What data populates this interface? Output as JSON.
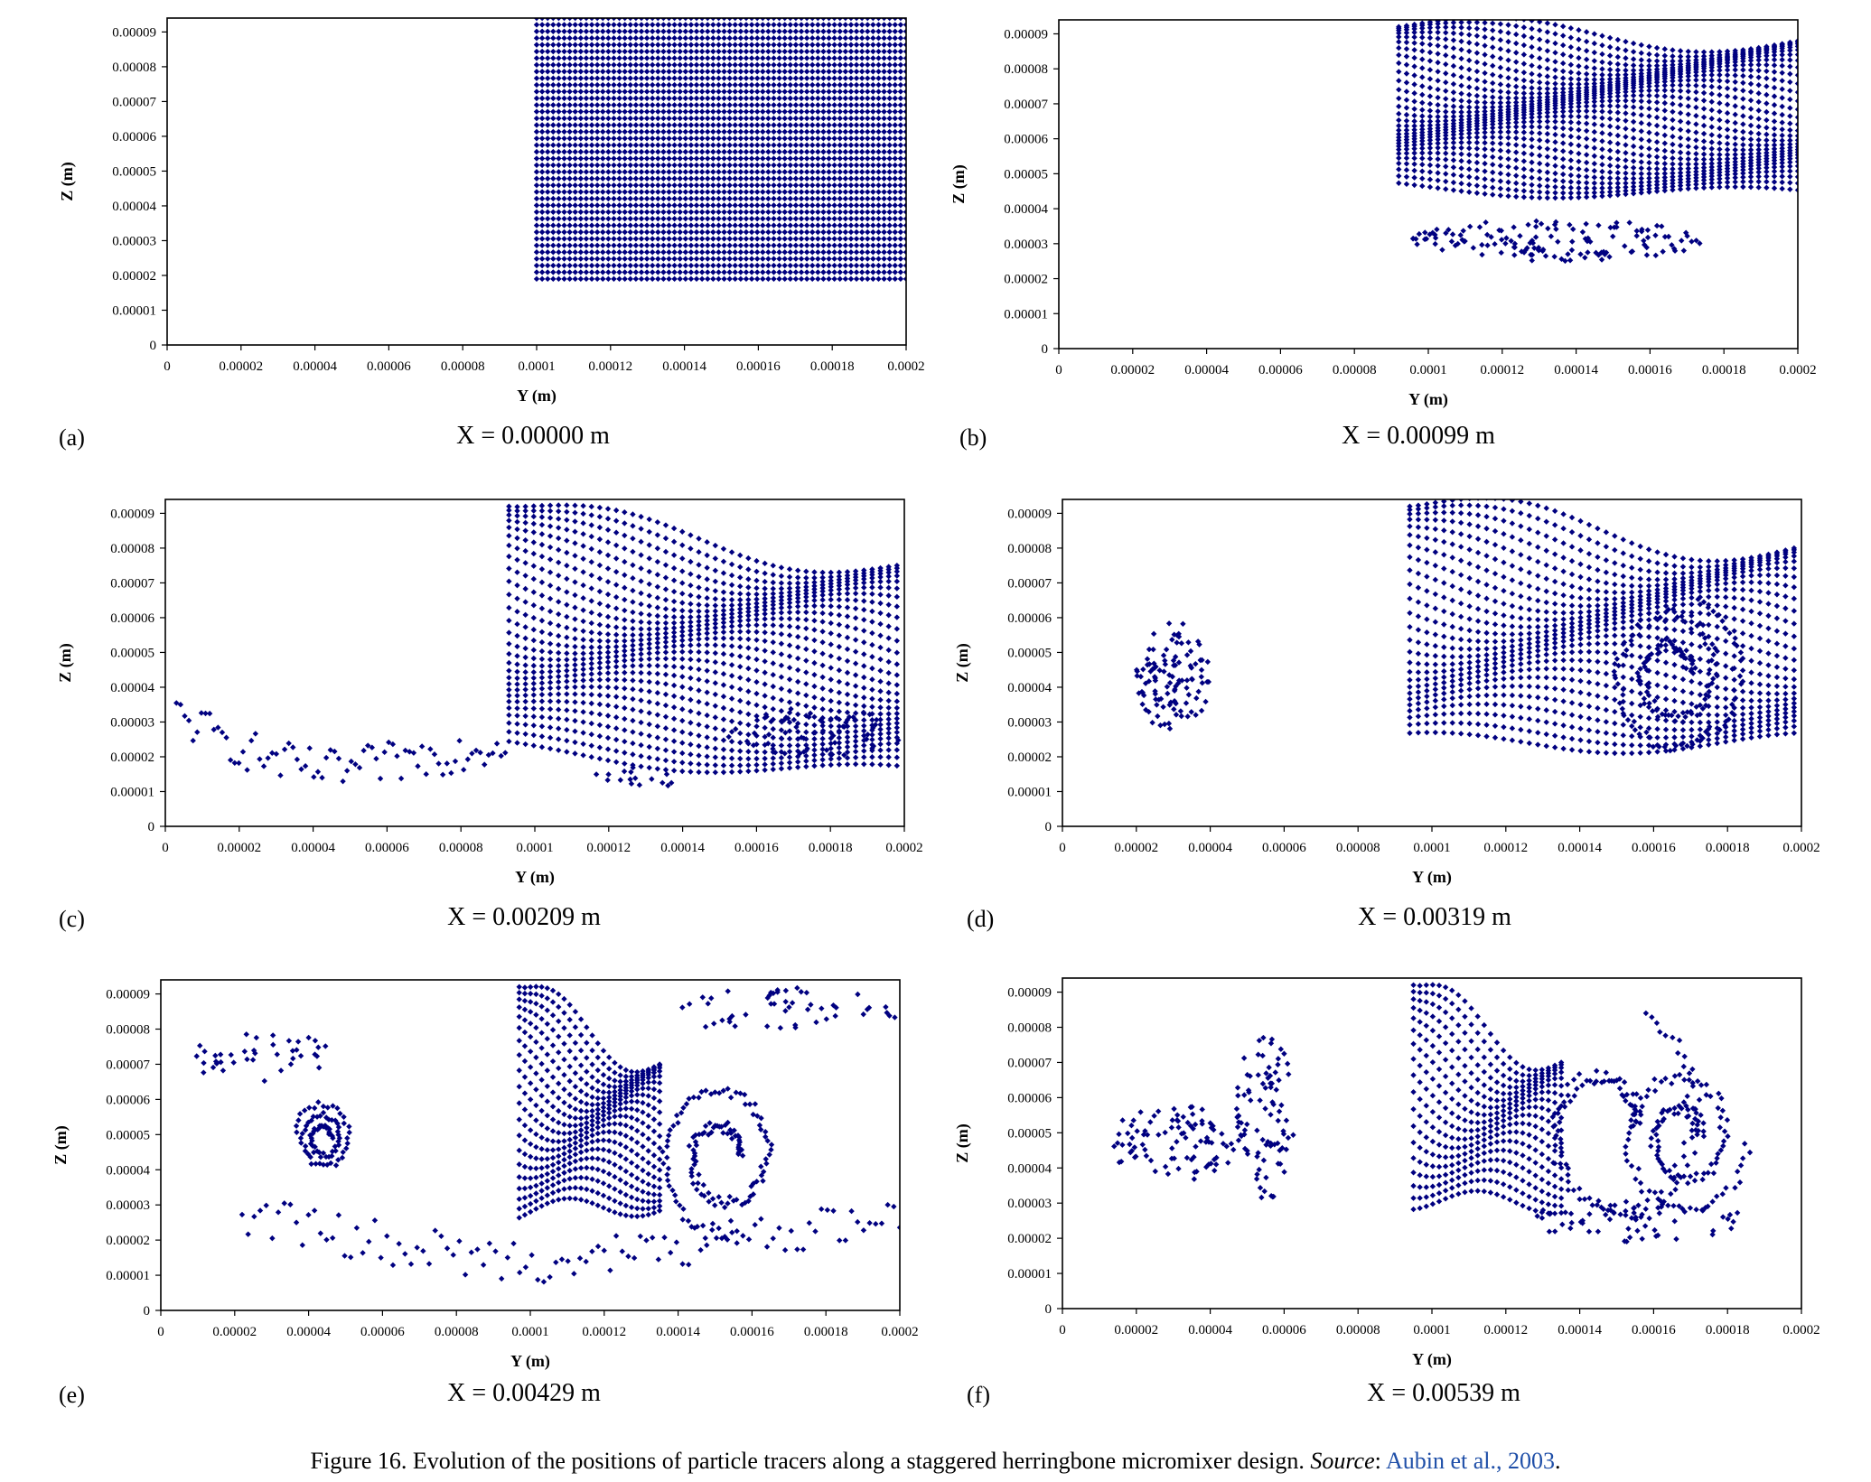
{
  "figure": {
    "caption_prefix": "Figure 16. Evolution of the positions of particle tracers along a staggered herringbone micromixer design. ",
    "source_label": "Source",
    "source_sep": ": ",
    "source_ref": "Aubin et al., 2003",
    "source_end": "."
  },
  "colors": {
    "marker": "#000080",
    "axis": "#000000",
    "caption_link": "#1f4fa8"
  },
  "chart_data": [
    {
      "type": "scatter",
      "panel": "(a)",
      "caption": "X = 0.00000 m",
      "xlabel": "Y (m)",
      "ylabel": "Z (m)",
      "xlim": [
        0,
        0.0002
      ],
      "ylim": [
        0,
        9.4e-05
      ],
      "x_ticks": [
        "0",
        "0.00002",
        "0.00004",
        "0.00006",
        "0.00008",
        "0.0001",
        "0.00012",
        "0.00014",
        "0.00016",
        "0.00018",
        "0.0002"
      ],
      "y_ticks": [
        "0",
        "0.00001",
        "0.00002",
        "0.00003",
        "0.00004",
        "0.00005",
        "0.00006",
        "0.00007",
        "0.00008",
        "0.00009"
      ],
      "regions": [
        {
          "kind": "grid",
          "x": [
            0.0001,
            0.0002
          ],
          "y": [
            1.9e-05,
            9.4e-05
          ],
          "nx": 68,
          "ny": 40
        }
      ]
    },
    {
      "type": "scatter",
      "panel": "(b)",
      "caption": "X = 0.00099 m",
      "xlabel": "Y (m)",
      "ylabel": "Z (m)",
      "xlim": [
        0,
        0.0002
      ],
      "ylim": [
        0,
        9.4e-05
      ],
      "x_ticks": [
        "0",
        "0.00002",
        "0.00004",
        "0.00006",
        "0.00008",
        "0.0001",
        "0.00012",
        "0.00014",
        "0.00016",
        "0.00018",
        "0.0002"
      ],
      "y_ticks": [
        "0",
        "0.00001",
        "0.00002",
        "0.00003",
        "0.00004",
        "0.00005",
        "0.00006",
        "0.00007",
        "0.00008",
        "0.00009"
      ],
      "regions": [
        {
          "kind": "fan",
          "x0": 9.2e-05,
          "x1": 0.0002,
          "top": 9.2e-05,
          "bottom": 4.6e-05,
          "center": 6.6e-05,
          "spread": 2.2e-05,
          "rows": 30,
          "nx": 52,
          "wave": 4e-06
        },
        {
          "kind": "blob",
          "cx": 0.000135,
          "cy": 3.1e-05,
          "rx": 4e-05,
          "ry": 6e-06,
          "n": 140
        }
      ]
    },
    {
      "type": "scatter",
      "panel": "(c)",
      "caption": "X = 0.00209 m",
      "xlabel": "Y (m)",
      "ylabel": "Z (m)",
      "xlim": [
        0,
        0.0002
      ],
      "ylim": [
        0,
        9.4e-05
      ],
      "x_ticks": [
        "0",
        "0.00002",
        "0.00004",
        "0.00006",
        "0.00008",
        "0.0001",
        "0.00012",
        "0.00014",
        "0.00016",
        "0.00018",
        "0.0002"
      ],
      "y_ticks": [
        "0",
        "0.00001",
        "0.00002",
        "0.00003",
        "0.00004",
        "0.00005",
        "0.00006",
        "0.00007",
        "0.00008",
        "0.00009"
      ],
      "regions": [
        {
          "kind": "fan",
          "x0": 9.3e-05,
          "x1": 0.000198,
          "top": 9.2e-05,
          "bottom": 2.2e-05,
          "center": 4.5e-05,
          "spread": 3e-05,
          "rows": 28,
          "nx": 48,
          "wave": 5e-06
        },
        {
          "kind": "tail",
          "x0": 3e-06,
          "x1": 9.2e-05,
          "y0": 3.2e-05,
          "ymin": 1.6e-05,
          "yend": 2.9e-05,
          "n": 80
        },
        {
          "kind": "blob",
          "cx": 0.000175,
          "cy": 2.7e-05,
          "rx": 2.5e-05,
          "ry": 7e-06,
          "n": 60
        },
        {
          "kind": "blob",
          "cx": 0.000128,
          "cy": 1.4e-05,
          "rx": 1.2e-05,
          "ry": 4e-06,
          "n": 16
        }
      ]
    },
    {
      "type": "scatter",
      "panel": "(d)",
      "caption": "X = 0.00319 m",
      "xlabel": "Y (m)",
      "ylabel": "Z (m)",
      "xlim": [
        0,
        0.0002
      ],
      "ylim": [
        0,
        9.4e-05
      ],
      "x_ticks": [
        "0",
        "0.00002",
        "0.00004",
        "0.00006",
        "0.00008",
        "0.0001",
        "0.00012",
        "0.00014",
        "0.00016",
        "0.00018",
        "0.0002"
      ],
      "y_ticks": [
        "0",
        "0.00001",
        "0.00002",
        "0.00003",
        "0.00004",
        "0.00005",
        "0.00006",
        "0.00007",
        "0.00008",
        "0.00009"
      ],
      "regions": [
        {
          "kind": "fan",
          "x0": 9.4e-05,
          "x1": 0.000198,
          "top": 9.2e-05,
          "bottom": 2.4e-05,
          "center": 5.2e-05,
          "spread": 2.8e-05,
          "rows": 26,
          "nx": 46,
          "wave": 6e-06
        },
        {
          "kind": "spiral",
          "cx": 0.000165,
          "cy": 4.4e-05,
          "r": 1.9e-05,
          "turns": 2.2,
          "n": 150
        },
        {
          "kind": "blob",
          "cx": 3e-05,
          "cy": 4.3e-05,
          "rx": 1e-05,
          "ry": 1.6e-05,
          "n": 110
        }
      ]
    },
    {
      "type": "scatter",
      "panel": "(e)",
      "caption": "X = 0.00429 m",
      "xlabel": "Y (m)",
      "ylabel": "Z (m)",
      "xlim": [
        0,
        0.0002
      ],
      "ylim": [
        0,
        9.4e-05
      ],
      "x_ticks": [
        "0",
        "0.00002",
        "0.00004",
        "0.00006",
        "0.00008",
        "0.0001",
        "0.00012",
        "0.00014",
        "0.00016",
        "0.00018",
        "0.0002"
      ],
      "y_ticks": [
        "0",
        "0.00001",
        "0.00002",
        "0.00003",
        "0.00004",
        "0.00005",
        "0.00006",
        "0.00007",
        "0.00008",
        "0.00009"
      ],
      "regions": [
        {
          "kind": "fan",
          "x0": 9.7e-05,
          "x1": 0.000135,
          "top": 9.2e-05,
          "bottom": 2.8e-05,
          "center": 5e-05,
          "spread": 2e-05,
          "rows": 20,
          "nx": 26,
          "wave": 6e-06
        },
        {
          "kind": "spiral",
          "cx": 0.000152,
          "cy": 4.4e-05,
          "r": 1.8e-05,
          "turns": 1.8,
          "n": 140
        },
        {
          "kind": "spiral",
          "cx": 4.4e-05,
          "cy": 4.9e-05,
          "r": 8e-06,
          "turns": 2.5,
          "n": 90
        },
        {
          "kind": "tail",
          "x0": 2.2e-05,
          "x1": 0.0002,
          "y0": 2.8e-05,
          "ymin": 1.4e-05,
          "yend": 3.5e-05,
          "n": 110
        },
        {
          "kind": "blob",
          "cx": 2.8e-05,
          "cy": 7.2e-05,
          "rx": 2.2e-05,
          "ry": 7e-06,
          "n": 40
        },
        {
          "kind": "blob",
          "cx": 0.00017,
          "cy": 8.5e-05,
          "rx": 3e-05,
          "ry": 7e-06,
          "n": 50
        }
      ]
    },
    {
      "type": "scatter",
      "panel": "(f)",
      "caption": "X = 0.00539 m",
      "xlabel": "Y (m)",
      "ylabel": "Z (m)",
      "xlim": [
        0,
        0.0002
      ],
      "ylim": [
        0,
        9.4e-05
      ],
      "x_ticks": [
        "0",
        "0.00002",
        "0.00004",
        "0.00006",
        "0.00008",
        "0.0001",
        "0.00012",
        "0.00014",
        "0.00016",
        "0.00018",
        "0.0002"
      ],
      "y_ticks": [
        "0",
        "0.00001",
        "0.00002",
        "0.00003",
        "0.00004",
        "0.00005",
        "0.00006",
        "0.00007",
        "0.00008",
        "0.00009"
      ],
      "regions": [
        {
          "kind": "fan",
          "x0": 9.5e-05,
          "x1": 0.000135,
          "top": 9.2e-05,
          "bottom": 3.1e-05,
          "center": 5e-05,
          "spread": 2e-05,
          "rows": 18,
          "nx": 24,
          "wave": 6e-06
        },
        {
          "kind": "spiral",
          "cx": 0.000168,
          "cy": 4.9e-05,
          "r": 1.8e-05,
          "turns": 2.0,
          "n": 130
        },
        {
          "kind": "spiral",
          "cx": 0.000148,
          "cy": 5.2e-05,
          "r": 2.6e-05,
          "turns": 1.2,
          "n": 110
        },
        {
          "kind": "blob",
          "cx": 3e-05,
          "cy": 4.7e-05,
          "rx": 1.8e-05,
          "ry": 1.1e-05,
          "n": 90
        },
        {
          "kind": "blob",
          "cx": 5.5e-05,
          "cy": 5.5e-05,
          "rx": 8e-06,
          "ry": 2.4e-05,
          "n": 90
        },
        {
          "kind": "blob",
          "cx": 0.000155,
          "cy": 2.5e-05,
          "rx": 3e-05,
          "ry": 6e-06,
          "n": 60
        }
      ]
    }
  ]
}
